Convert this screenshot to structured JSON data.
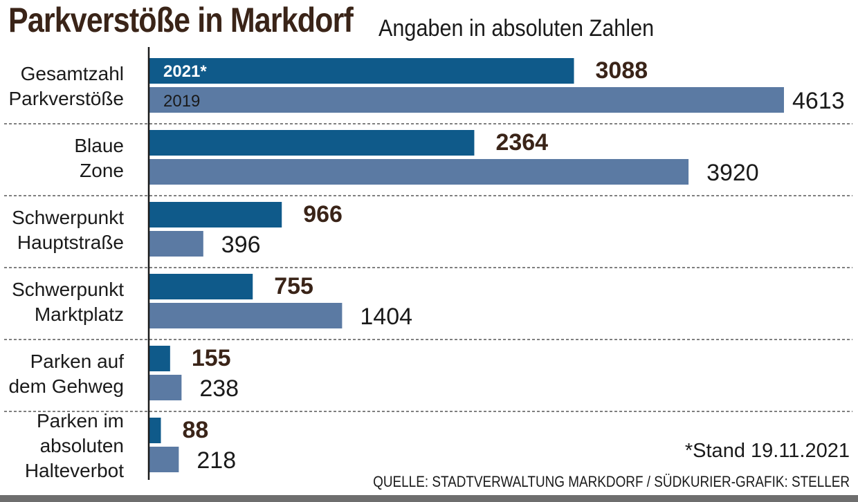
{
  "title": "Parkverstöße in Markdorf",
  "subtitle": "Angaben in absoluten Zahlen",
  "note": "*Stand 19.11.2021",
  "source": "QUELLE: STADTVERWALTUNG MARKDORF / SÜDKURIER-GRAFIK: STELLER",
  "colors": {
    "series_2021": "#0f5a8a",
    "series_2019": "#5b7aa3",
    "title": "#3a2418"
  },
  "chart_data": {
    "type": "bar",
    "orientation": "horizontal",
    "title": "Parkverstöße in Markdorf",
    "subtitle": "Angaben in absoluten Zahlen",
    "categories": [
      [
        "Gesamtzahl",
        "Parkverstöße"
      ],
      [
        "Blaue",
        "Zone"
      ],
      [
        "Schwerpunkt",
        "Hauptstraße"
      ],
      [
        "Schwerpunkt",
        "Marktplatz"
      ],
      [
        "Parken auf",
        "dem Gehweg"
      ],
      [
        "Parken im",
        "absoluten",
        "Halteverbot"
      ]
    ],
    "series": [
      {
        "name": "2021*",
        "values": [
          3088,
          2364,
          966,
          755,
          155,
          88
        ]
      },
      {
        "name": "2019",
        "values": [
          4613,
          3920,
          396,
          1404,
          238,
          218
        ]
      }
    ],
    "xlim": [
      0,
      4613
    ],
    "grid": false,
    "legend": "inside first category bars"
  }
}
